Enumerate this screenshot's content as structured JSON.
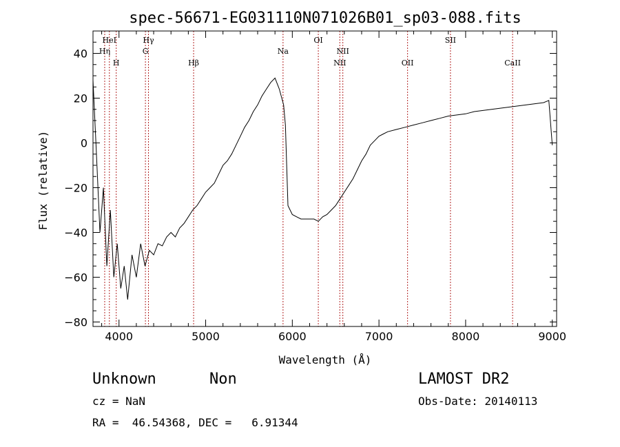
{
  "chart_data": {
    "type": "line",
    "title": "spec-56671-EG031110N071026B01_sp03-088.fits",
    "xlabel": "Wavelength (Å)",
    "ylabel": "Flux (relative)",
    "xlim": [
      3700,
      9050
    ],
    "ylim": [
      -82,
      50
    ],
    "xticks": [
      "4000",
      "5000",
      "6000",
      "7000",
      "8000",
      "9000"
    ],
    "yticks": [
      "−80",
      "−60",
      "−40",
      "−20",
      "0",
      "20",
      "40"
    ],
    "x_tick_values": [
      4000,
      5000,
      6000,
      7000,
      8000,
      9000
    ],
    "y_tick_values": [
      -80,
      -60,
      -40,
      -20,
      0,
      20,
      40
    ],
    "grid": false,
    "lines": [
      {
        "label": "Hη",
        "x": 3835,
        "row": "lower"
      },
      {
        "label": "HeI",
        "x": 3889,
        "row": "upper"
      },
      {
        "label": "H",
        "x": 3968,
        "row": "mid"
      },
      {
        "label": "Hγ",
        "x": 4340,
        "row": "upper"
      },
      {
        "label": "G",
        "x": 4305,
        "row": "lower"
      },
      {
        "label": "Hβ",
        "x": 4861,
        "row": "mid"
      },
      {
        "label": "Na",
        "x": 5893,
        "row": "lower"
      },
      {
        "label": "OI",
        "x": 6300,
        "row": "upper"
      },
      {
        "label": "NII",
        "x": 6548,
        "row": "mid"
      },
      {
        "label": "NII",
        "x": 6583,
        "row": "lower"
      },
      {
        "label": "OII",
        "x": 7330,
        "row": "mid"
      },
      {
        "label": "SII",
        "x": 7825,
        "row": "upper"
      },
      {
        "label": "CaII",
        "x": 8542,
        "row": "mid"
      }
    ],
    "series": [
      {
        "x": [
          3700,
          3740,
          3780,
          3820,
          3860,
          3900,
          3940,
          3980,
          4020,
          4060,
          4100,
          4150,
          4200,
          4250,
          4300,
          4350,
          4400,
          4450,
          4500,
          4550,
          4600,
          4650,
          4700,
          4750,
          4800,
          4850,
          4900,
          4950,
          5000,
          5050,
          5100,
          5150,
          5200,
          5250,
          5300,
          5350,
          5400,
          5450,
          5500,
          5550,
          5600,
          5650,
          5700,
          5750,
          5800,
          5850,
          5900,
          5920,
          5950,
          6000,
          6050,
          6100,
          6150,
          6200,
          6250,
          6300,
          6350,
          6400,
          6450,
          6500,
          6550,
          6600,
          6650,
          6700,
          6750,
          6800,
          6850,
          6900,
          6950,
          7000,
          7050,
          7100,
          7200,
          7300,
          7400,
          7500,
          7600,
          7700,
          7800,
          7900,
          8000,
          8100,
          8200,
          8300,
          8400,
          8500,
          8600,
          8700,
          8800,
          8900,
          8960,
          9000
        ],
        "y": [
          28,
          -5,
          -40,
          -20,
          -55,
          -30,
          -60,
          -45,
          -65,
          -55,
          -70,
          -50,
          -60,
          -45,
          -55,
          -48,
          -50,
          -45,
          -46,
          -42,
          -40,
          -42,
          -38,
          -36,
          -33,
          -30,
          -28,
          -25,
          -22,
          -20,
          -18,
          -14,
          -10,
          -8,
          -5,
          -1,
          3,
          7,
          10,
          14,
          17,
          21,
          24,
          27,
          29,
          24,
          17,
          8,
          -28,
          -32,
          -33,
          -34,
          -34,
          -34,
          -34,
          -35,
          -33,
          -32,
          -30,
          -28,
          -25,
          -22,
          -19,
          -16,
          -12,
          -8,
          -5,
          -1,
          1,
          3,
          4,
          5,
          6,
          7,
          8,
          9,
          10,
          11,
          12,
          12.5,
          13,
          14,
          14.5,
          15,
          15.5,
          16,
          16.5,
          17,
          17.5,
          18,
          19,
          -1
        ]
      }
    ]
  },
  "info": {
    "object_type": "Unknown",
    "subclass": "Non",
    "survey": "LAMOST DR2",
    "redshift": "cz = NaN",
    "obs_date": "Obs-Date: 20140113",
    "coords": "RA =  46.54368, DEC =   6.91344"
  }
}
